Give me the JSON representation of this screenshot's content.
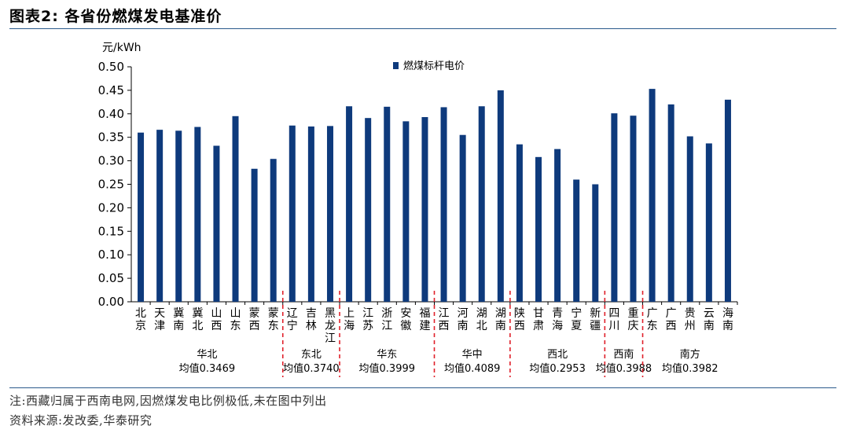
{
  "title": "图表2:  各省份燃煤发电基准价",
  "notes": {
    "note": "注:西藏归属于西南电网,因燃煤发电比例极低,未在图中列出",
    "source": "资料来源:发改委,华泰研究"
  },
  "colors": {
    "bar": "#0e3a7c",
    "divider": "#e0202a",
    "rule": "#2b5a8c"
  },
  "chart_data": {
    "type": "bar",
    "ylabel": "元/kWh",
    "ylim": [
      0,
      0.5
    ],
    "yticks": [
      "0.00",
      "0.05",
      "0.10",
      "0.15",
      "0.20",
      "0.25",
      "0.30",
      "0.35",
      "0.40",
      "0.45",
      "0.50"
    ],
    "legend": {
      "label": "燃煤标杆电价",
      "position": "top-center"
    },
    "grid": false,
    "groups": [
      {
        "name": "华北",
        "avg": "均值0.3469",
        "categories": [
          "北京",
          "天津",
          "冀南",
          "冀北",
          "山西",
          "山东",
          "蒙西",
          "蒙东"
        ],
        "values": [
          0.36,
          0.366,
          0.364,
          0.372,
          0.332,
          0.395,
          0.283,
          0.304
        ]
      },
      {
        "name": "东北",
        "avg": "均值0.3740",
        "categories": [
          "辽宁",
          "吉林",
          "黑龙江"
        ],
        "values": [
          0.375,
          0.373,
          0.374
        ]
      },
      {
        "name": "华东",
        "avg": "均值0.3999",
        "categories": [
          "上海",
          "江苏",
          "浙江",
          "安徽",
          "福建"
        ],
        "values": [
          0.416,
          0.391,
          0.415,
          0.384,
          0.393
        ]
      },
      {
        "name": "华中",
        "avg": "均值0.4089",
        "categories": [
          "江西",
          "河南",
          "湖北",
          "湖南"
        ],
        "values": [
          0.414,
          0.355,
          0.416,
          0.45
        ]
      },
      {
        "name": "西北",
        "avg": "均值0.2953",
        "categories": [
          "陕西",
          "甘肃",
          "青海",
          "宁夏",
          "新疆"
        ],
        "values": [
          0.335,
          0.308,
          0.325,
          0.26,
          0.25
        ]
      },
      {
        "name": "西南",
        "avg": "均值0.3988",
        "categories": [
          "四川",
          "重庆"
        ],
        "values": [
          0.401,
          0.396
        ]
      },
      {
        "name": "南方",
        "avg": "均值0.3982",
        "categories": [
          "广东",
          "广西",
          "贵州",
          "云南",
          "海南"
        ],
        "values": [
          0.453,
          0.42,
          0.352,
          0.337,
          0.43
        ]
      }
    ]
  }
}
